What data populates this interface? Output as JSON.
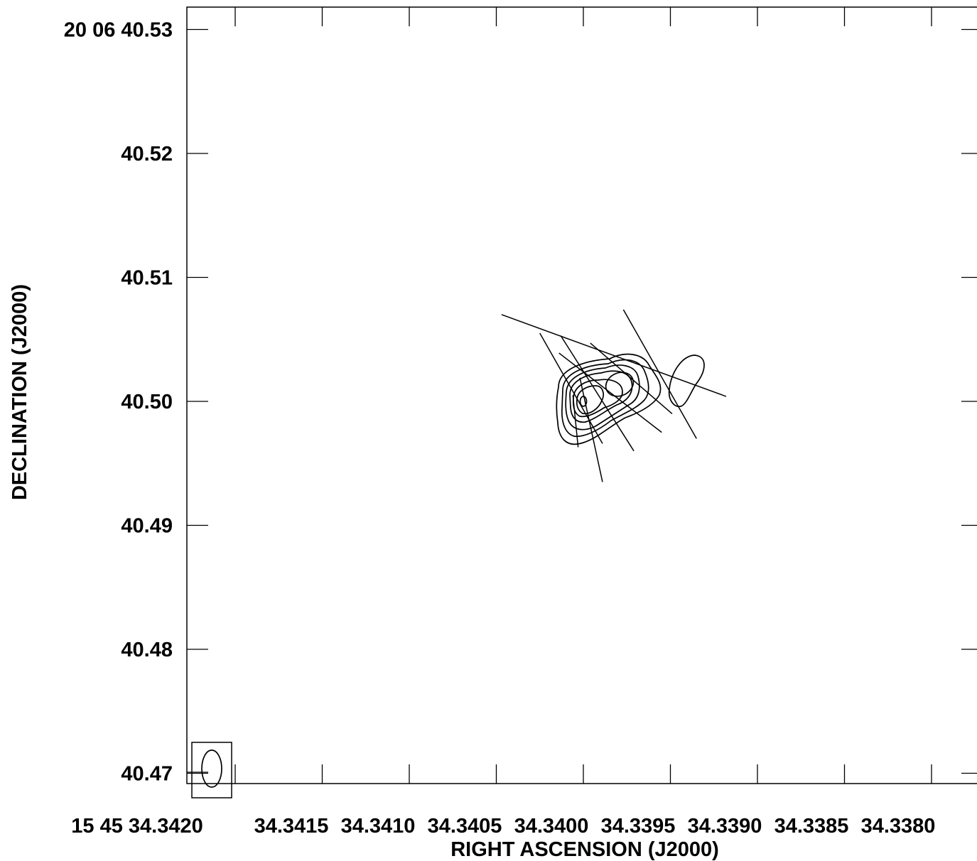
{
  "chart_data": {
    "type": "contour",
    "xlabel": "RIGHT ASCENSION (J2000)",
    "ylabel": "DECLINATION (J2000)",
    "x_ticks": [
      "15 45 34.3420",
      "34.3415",
      "34.3410",
      "34.3405",
      "34.3400",
      "34.3395",
      "34.3390",
      "34.3385",
      "34.3380"
    ],
    "y_ticks": [
      "20 06 40.53",
      "40.52",
      "40.51",
      "40.50",
      "40.49",
      "40.48",
      "40.47"
    ],
    "x_tick_values_s": [
      34.342,
      34.3415,
      34.341,
      34.3405,
      34.34,
      34.3395,
      34.339,
      34.3385,
      34.338
    ],
    "y_tick_values_arcsec": [
      40.53,
      40.52,
      40.51,
      40.5,
      40.49,
      40.48,
      40.47
    ],
    "x_range_s": [
      34.34215,
      34.33775
    ],
    "y_range_arcsec": [
      40.4675,
      40.5325
    ],
    "grid": false,
    "features": [
      {
        "name": "main-component",
        "center": [
          34.34,
          40.5
        ],
        "contour_levels": 6
      },
      {
        "name": "secondary-component",
        "center": [
          34.33963,
          40.5013
        ]
      },
      {
        "name": "west-blob",
        "center": [
          34.33949,
          40.5016
        ]
      }
    ],
    "polarization_vectors": [
      {
        "x1": 34.34047,
        "y1": 40.507,
        "x2": 34.33918,
        "y2": 40.5004
      },
      {
        "x1": 34.33977,
        "y1": 40.5074,
        "x2": 34.33935,
        "y2": 40.497
      },
      {
        "x1": 34.34025,
        "y1": 40.5055,
        "x2": 34.33989,
        "y2": 40.4966
      },
      {
        "x1": 34.34013,
        "y1": 40.5053,
        "x2": 34.33971,
        "y2": 40.496
      },
      {
        "x1": 34.34014,
        "y1": 40.5039,
        "x2": 34.33955,
        "y2": 40.4975
      },
      {
        "x1": 34.33996,
        "y1": 40.5047,
        "x2": 34.33949,
        "y2": 40.499
      },
      {
        "x1": 34.34002,
        "y1": 40.5019,
        "x2": 34.33989,
        "y2": 40.4935
      },
      {
        "x1": 34.34006,
        "y1": 40.5005,
        "x2": 34.34003,
        "y2": 40.4963
      }
    ],
    "beam": {
      "major_arcsec": 0.003,
      "minor_arcsec": 0.0014,
      "pa_deg": 0
    }
  }
}
